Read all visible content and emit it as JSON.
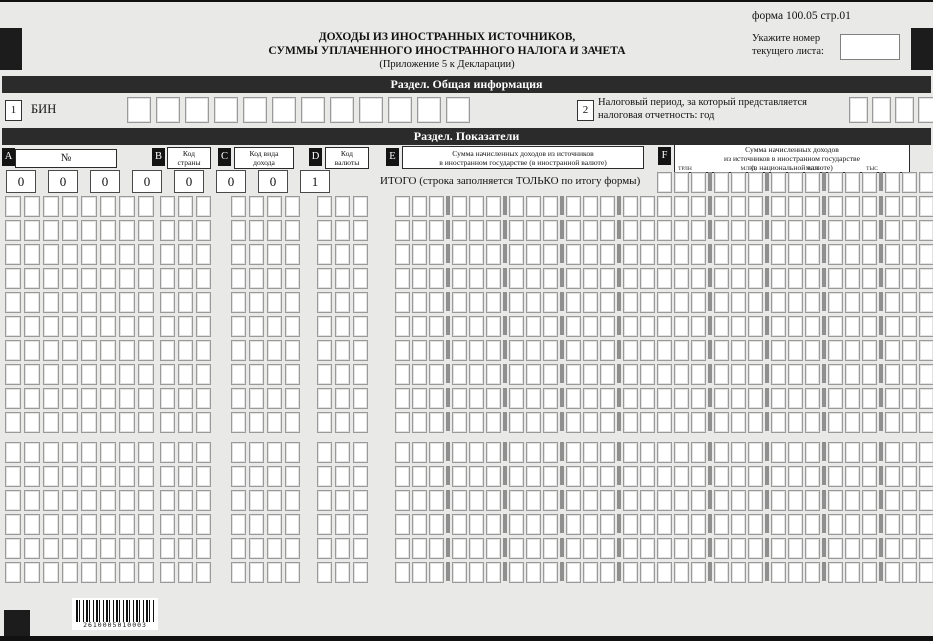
{
  "header": {
    "form_code": "форма 100.05 стр.01",
    "title_lines": [
      "ДОХОДЫ ИЗ ИНОСТРАННЫХ ИСТОЧНИКОВ,",
      "СУММЫ УПЛАЧЕННОГО ИНОСТРАННОГО НАЛОГА И ЗАЧЕТА",
      "(Приложение 5 к Декларации)"
    ],
    "sheet_label_lines": [
      "Укажите номер",
      "текущего листа:"
    ],
    "sheet_value": ""
  },
  "section_general": {
    "title": "Раздел. Общая информация",
    "item1": {
      "number": "1",
      "label": "БИН",
      "cell_count": 12
    },
    "item2": {
      "number": "2",
      "label_lines": [
        "Налоговый период, за который представляется",
        "налоговая отчетность: год"
      ],
      "cell_count": 4
    }
  },
  "section_indicators": {
    "title": "Раздел. Показатели",
    "columns": {
      "A": {
        "id": "A",
        "header": "№",
        "cell_count": 8
      },
      "B": {
        "id": "B",
        "header_lines": [
          "Код",
          "страны"
        ],
        "cell_count": 3
      },
      "C": {
        "id": "C",
        "header_lines": [
          "Код вида",
          "дохода"
        ],
        "cell_count": 4
      },
      "D": {
        "id": "D",
        "header_lines": [
          "Код",
          "валюты"
        ],
        "cell_count": 3
      },
      "E": {
        "id": "E",
        "header_lines": [
          "Сумма начисленных доходов из источников",
          "в иностранном государстве (в иностранной валюте)"
        ],
        "cell_count": 15,
        "group_size": 3
      },
      "F": {
        "id": "F",
        "header_lines": [
          "Сумма начисленных доходов",
          "из источников в иностранном государстве",
          "(в национальной валюте)"
        ],
        "cell_count": 15,
        "group_size": 3
      }
    },
    "magnitude_labels": [
      "ТРЛН",
      "МЛРД",
      "МЛН",
      "ТЫС"
    ],
    "total_row": {
      "row_number": "00000001",
      "label": "ИТОГО (строка заполняется ТОЛЬКО по итогу формы)"
    },
    "empty_row_count": 16
  },
  "barcode": {
    "value": "2610005010003"
  },
  "colors": {
    "section_bar": "#2b2b2b",
    "registration_mark": "#1c1c1c",
    "cell_border": "#9a9a9a",
    "group_separator": "#8f8f8f"
  }
}
